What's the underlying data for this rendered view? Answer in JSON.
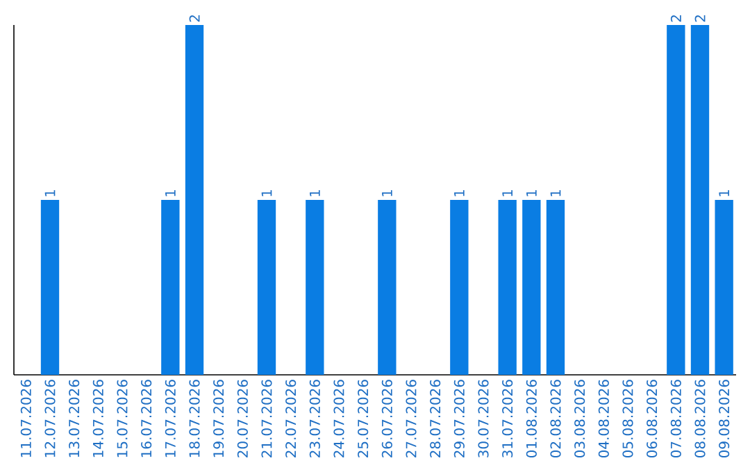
{
  "chart_data": {
    "type": "bar",
    "categories": [
      "11.07.2026",
      "12.07.2026",
      "13.07.2026",
      "14.07.2026",
      "15.07.2026",
      "16.07.2026",
      "17.07.2026",
      "18.07.2026",
      "19.07.2026",
      "20.07.2026",
      "21.07.2026",
      "22.07.2026",
      "23.07.2026",
      "24.07.2026",
      "25.07.2026",
      "26.07.2026",
      "27.07.2026",
      "28.07.2026",
      "29.07.2026",
      "30.07.2026",
      "31.07.2026",
      "01.08.2026",
      "02.08.2026",
      "03.08.2026",
      "04.08.2026",
      "05.08.2026",
      "06.08.2026",
      "07.08.2026",
      "08.08.2026",
      "09.08.2026"
    ],
    "values": [
      0,
      1,
      0,
      0,
      0,
      0,
      1,
      2,
      0,
      0,
      1,
      0,
      1,
      0,
      0,
      1,
      0,
      0,
      1,
      0,
      1,
      1,
      1,
      0,
      0,
      0,
      0,
      2,
      2,
      1
    ],
    "value_labels": [
      null,
      "1",
      null,
      null,
      null,
      null,
      "1",
      "2",
      null,
      null,
      "1",
      null,
      "1",
      null,
      null,
      "1",
      null,
      null,
      "1",
      null,
      "1",
      "1",
      "1",
      null,
      null,
      null,
      null,
      "2",
      "2",
      "1"
    ],
    "color": "#0a7de3",
    "ylim": [
      0,
      2
    ],
    "tick_labels": "x",
    "grid": false
  }
}
